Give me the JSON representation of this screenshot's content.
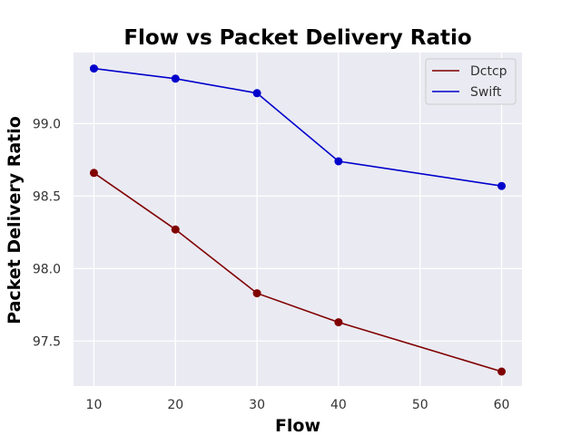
{
  "chart_data": {
    "type": "line",
    "title": "Flow vs Packet Delivery Ratio",
    "xlabel": "Flow",
    "ylabel": "Packet Delivery Ratio",
    "x": [
      10,
      20,
      30,
      40,
      60
    ],
    "xlim": [
      7.5,
      62.5
    ],
    "ylim": [
      97.19,
      99.49
    ],
    "xticks": [
      10,
      20,
      30,
      40,
      50,
      60
    ],
    "xtick_labels": [
      "10",
      "20",
      "30",
      "40",
      "50",
      "60"
    ],
    "yticks": [
      97.5,
      98.0,
      98.5,
      99.0
    ],
    "ytick_labels": [
      "97.5",
      "98.0",
      "98.5",
      "99.0"
    ],
    "grid": true,
    "legend_position": "top-right",
    "colors": {
      "plot_background": "#eaeaf2",
      "grid": "#ffffff"
    },
    "series": [
      {
        "name": "Dctcp",
        "color": "#800000",
        "values": [
          98.66,
          98.27,
          97.83,
          97.63,
          97.29
        ]
      },
      {
        "name": "Swift",
        "color": "#0000cc",
        "values": [
          99.38,
          99.31,
          99.21,
          98.74,
          98.57
        ]
      }
    ]
  }
}
